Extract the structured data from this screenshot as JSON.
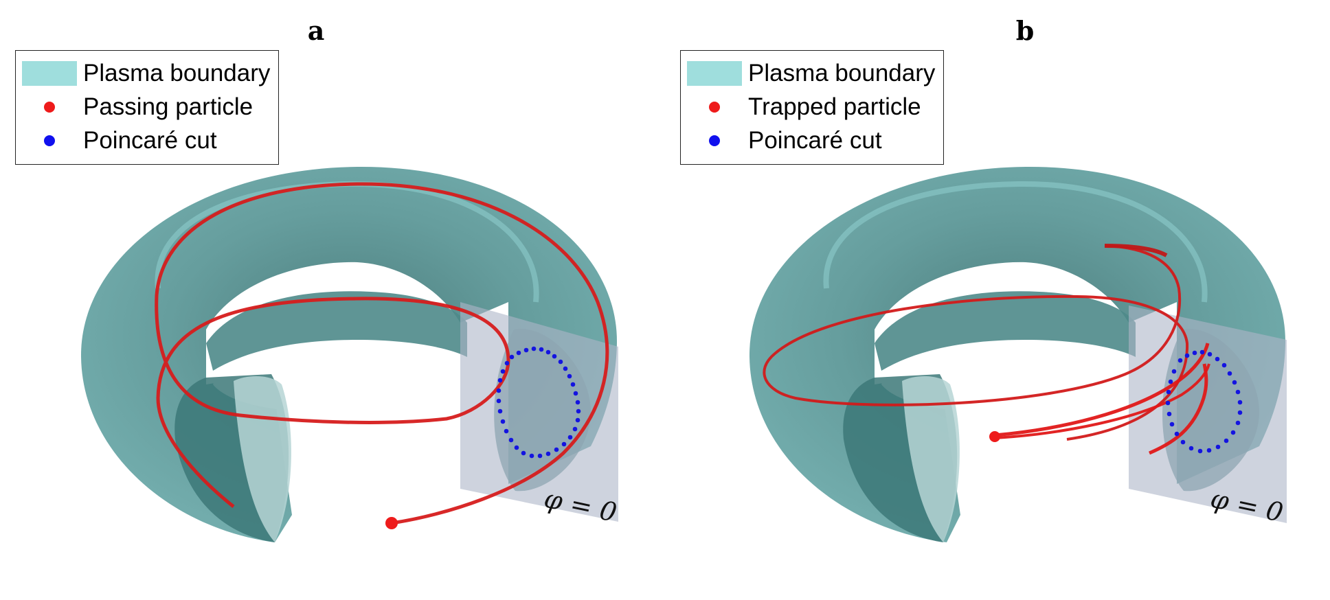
{
  "panels": [
    {
      "title": "a",
      "legend": [
        {
          "label": "Plasma boundary",
          "swatch": "rect"
        },
        {
          "label": "Passing particle",
          "swatch": "red-dot"
        },
        {
          "label": "Poincaré cut",
          "swatch": "blue-dot"
        }
      ],
      "plane_label": "φ = 0"
    },
    {
      "title": "b",
      "legend": [
        {
          "label": "Plasma boundary",
          "swatch": "rect"
        },
        {
          "label": "Trapped particle",
          "swatch": "red-dot"
        },
        {
          "label": "Poincaré cut",
          "swatch": "blue-dot"
        }
      ],
      "plane_label": "φ = 0"
    }
  ],
  "colors": {
    "torus": "#5e9c9c",
    "torus_highlight": "#8fd0d0",
    "cross_section": "#b8d6d6",
    "plane": "#aeb6c8",
    "trajectory": "#e01818",
    "poincare": "#1414e0"
  }
}
